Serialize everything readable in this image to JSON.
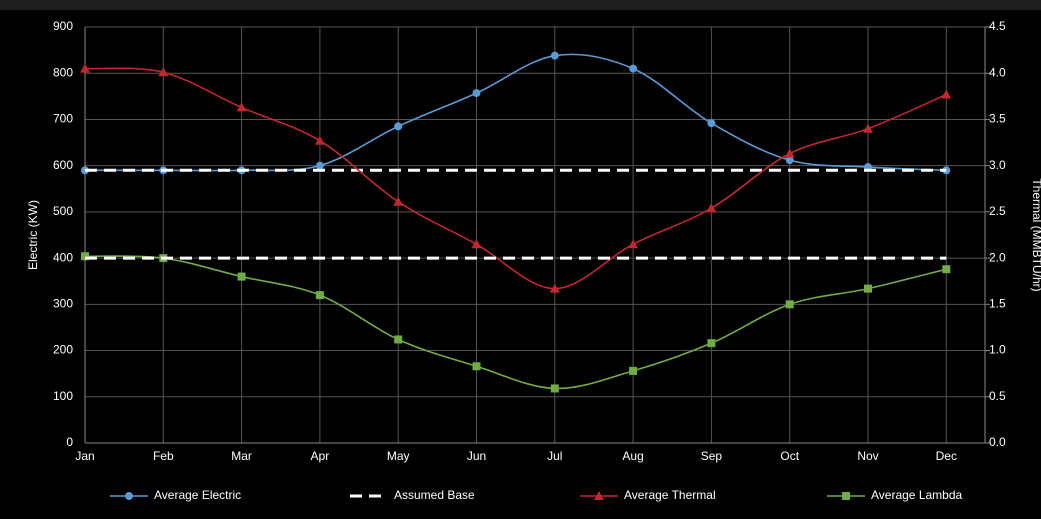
{
  "chart_data": {
    "type": "line",
    "categories": [
      "Jan",
      "Feb",
      "Mar",
      "Apr",
      "May",
      "Jun",
      "Jul",
      "Aug",
      "Sep",
      "Oct",
      "Nov",
      "Dec"
    ],
    "ylabel": "Electric (KW)",
    "y2label": "Thermal (MMBTU/hr)",
    "ylim": [
      0,
      900
    ],
    "yticks": [
      0,
      100,
      200,
      300,
      400,
      500,
      600,
      700,
      800,
      900
    ],
    "y2lim": [
      0,
      4.5
    ],
    "y2ticks": [
      {
        "value": 0,
        "label": "0.0"
      },
      0.5,
      {
        "value": 1,
        "label": "1.0"
      },
      1.5,
      {
        "value": 2,
        "label": "2.0"
      },
      2.5,
      {
        "value": 3,
        "label": "3.0"
      },
      3.5,
      {
        "value": 4,
        "label": "4.0"
      },
      4.5
    ],
    "grid": true,
    "series": [
      {
        "name": "Average Electric",
        "color": "#5b9bd5",
        "marker": "circle",
        "values": [
          590,
          590,
          590,
          600,
          685,
          757,
          838,
          810,
          692,
          612,
          597,
          590
        ]
      },
      {
        "name": "Assumed Base",
        "color": "#ffffff",
        "dashed": true,
        "values": [
          590,
          590,
          590,
          590,
          590,
          590,
          590,
          590,
          590,
          590,
          590,
          590
        ]
      },
      {
        "name": "Average Thermal",
        "color": "#c0282d",
        "marker": "triangle",
        "axis": "y2",
        "values": [
          4.05,
          4.01,
          3.63,
          3.27,
          2.61,
          2.15,
          1.67,
          2.15,
          2.54,
          3.13,
          3.4,
          3.77
        ]
      },
      {
        "name": "Average Lambda",
        "color": "#70ad47",
        "marker": "square",
        "axis": "y2",
        "values": [
          2.02,
          2.0,
          1.8,
          1.6,
          1.12,
          0.83,
          0.59,
          0.78,
          1.08,
          1.5,
          1.67,
          1.88
        ]
      },
      {
        "name": "Assumed Base",
        "color": "#ffffff",
        "dashed": true,
        "axis": "y2",
        "values": [
          2,
          2,
          2,
          2,
          2,
          2,
          2,
          2,
          2,
          2,
          2,
          2
        ]
      }
    ]
  }
}
